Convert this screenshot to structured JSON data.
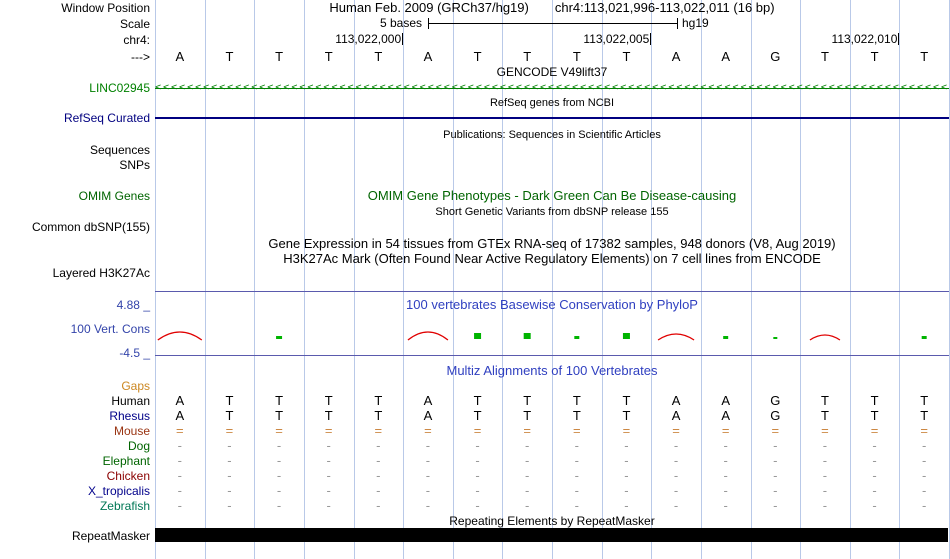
{
  "colors": {
    "gridline": "#b9c9e8",
    "navy": "#000080",
    "gene_green": "#008000",
    "dark_green": "#006400",
    "title_blue": "#3040c0",
    "value_blue": "#3344aa",
    "separator": "#5a5aad",
    "phylop_red": "#e00000",
    "phylop_green": "#00b400",
    "gaps_orange": "#cc8822",
    "gap_dash_gray": "#999999",
    "repeat_black": "#000000"
  },
  "header": {
    "assembly": "Human Feb. 2009 (GRCh37/hg19)",
    "position": "chr4:113,021,996-113,022,011 (16 bp)"
  },
  "scale": {
    "label": "5 bases",
    "genome": "hg19"
  },
  "coords": [
    "113,022,000",
    "113,022,005",
    "113,022,010"
  ],
  "strand_bases": [
    "A",
    "T",
    "T",
    "T",
    "T",
    "A",
    "T",
    "T",
    "T",
    "T",
    "A",
    "A",
    "G",
    "T",
    "T",
    "T"
  ],
  "sidebar": {
    "window_position": "Window Position",
    "scale": "Scale",
    "chrom": "chr4:",
    "strand": "--->",
    "linc": "LINC02945",
    "refseq": "RefSeq Curated",
    "sequences": "Sequences",
    "snps": "SNPs",
    "omim": "OMIM Genes",
    "dbsnp": "Common dbSNP(155)",
    "h3k27ac": "Layered H3K27Ac",
    "cons_max": "4.88 _",
    "cons": "100 Vert. Cons",
    "cons_min": "-4.5 _",
    "repeatmasker": "RepeatMasker"
  },
  "titles": {
    "gencode": "GENCODE V49lift37",
    "refseq_ncbi": "RefSeq genes from NCBI",
    "publications": "Publications: Sequences in Scientific Articles",
    "omim": "OMIM Gene Phenotypes - Dark Green Can Be Disease-causing",
    "dbsnp": "Short Genetic Variants from dbSNP release 155",
    "gtex": "Gene Expression in 54 tissues from GTEx RNA-seq of 17382 samples, 948 donors (V8, Aug 2019)",
    "h3k27ac": "H3K27Ac Mark (Often Found Near Active Regulatory Elements) on 7 cell lines from ENCODE",
    "phylop": "100 vertebrates Basewise Conservation by PhyloP",
    "multiz": "Multiz Alignments of 100 Vertebrates",
    "repeats": "Repeating Elements by RepeatMasker"
  },
  "linc_track": {
    "glyph": "<",
    "count": 100,
    "color": "#008000"
  },
  "conservation": {
    "max": 4.88,
    "min": -4.5,
    "marks": [
      {
        "type": "red",
        "w": 44,
        "h": 8
      },
      {
        "type": "none",
        "w": 0,
        "h": 0
      },
      {
        "type": "green",
        "w": 6,
        "h": 3
      },
      {
        "type": "none",
        "w": 0,
        "h": 0
      },
      {
        "type": "none",
        "w": 0,
        "h": 0
      },
      {
        "type": "red",
        "w": 40,
        "h": 8
      },
      {
        "type": "green",
        "w": 7,
        "h": 6
      },
      {
        "type": "green",
        "w": 7,
        "h": 6
      },
      {
        "type": "green",
        "w": 5,
        "h": 3
      },
      {
        "type": "green",
        "w": 7,
        "h": 6
      },
      {
        "type": "red",
        "w": 36,
        "h": 6
      },
      {
        "type": "green",
        "w": 5,
        "h": 3
      },
      {
        "type": "green",
        "w": 4,
        "h": 2
      },
      {
        "type": "red",
        "w": 30,
        "h": 5
      },
      {
        "type": "none",
        "w": 0,
        "h": 0
      },
      {
        "type": "green",
        "w": 5,
        "h": 3
      }
    ]
  },
  "alignment": {
    "rows": [
      {
        "name": "Gaps",
        "label_color": "#cc8822",
        "glyph_color": "#cc8822",
        "glyphs": []
      },
      {
        "name": "Human",
        "label_color": "#000000",
        "glyph_color": "#000000",
        "glyphs": [
          "A",
          "T",
          "T",
          "T",
          "T",
          "A",
          "T",
          "T",
          "T",
          "T",
          "A",
          "A",
          "G",
          "T",
          "T",
          "T"
        ]
      },
      {
        "name": "Rhesus",
        "label_color": "#000088",
        "glyph_color": "#000000",
        "glyphs": [
          "A",
          "T",
          "T",
          "T",
          "T",
          "A",
          "T",
          "T",
          "T",
          "T",
          "A",
          "A",
          "G",
          "T",
          "T",
          "T"
        ]
      },
      {
        "name": "Mouse",
        "label_color": "#993311",
        "glyph_color": "#cc8844",
        "glyphs": [
          "=",
          "=",
          "=",
          "=",
          "=",
          "=",
          "=",
          "=",
          "=",
          "=",
          "=",
          "=",
          "=",
          "=",
          "=",
          "="
        ]
      },
      {
        "name": "Dog",
        "label_color": "#006400",
        "glyph_color": "#999999",
        "glyphs": [
          "-",
          "-",
          "-",
          "-",
          "-",
          "-",
          "-",
          "-",
          "-",
          "-",
          "-",
          "-",
          "-",
          "-",
          "-",
          "-"
        ]
      },
      {
        "name": "Elephant",
        "label_color": "#006400",
        "glyph_color": "#999999",
        "glyphs": [
          "-",
          "-",
          "-",
          "-",
          "-",
          "-",
          "-",
          "-",
          "-",
          "-",
          "-",
          "-",
          "-",
          "-",
          "-",
          "-"
        ]
      },
      {
        "name": "Chicken",
        "label_color": "#8b0000",
        "glyph_color": "#999999",
        "glyphs": [
          "-",
          "-",
          "-",
          "-",
          "-",
          "-",
          "-",
          "-",
          "-",
          "-",
          "-",
          "-",
          "-",
          "-",
          "-",
          "-"
        ]
      },
      {
        "name": "X_tropicalis",
        "label_color": "#00008b",
        "glyph_color": "#999999",
        "glyphs": [
          "-",
          "-",
          "-",
          "-",
          "-",
          "-",
          "-",
          "-",
          "-",
          "-",
          "-",
          "-",
          "-",
          "-",
          "-",
          "-"
        ]
      },
      {
        "name": "Zebrafish",
        "label_color": "#007755",
        "glyph_color": "#999999",
        "glyphs": [
          "-",
          "-",
          "-",
          "-",
          "-",
          "-",
          "-",
          "-",
          "-",
          "-",
          "-",
          "-",
          "-",
          "-",
          "-",
          "-"
        ]
      }
    ]
  }
}
